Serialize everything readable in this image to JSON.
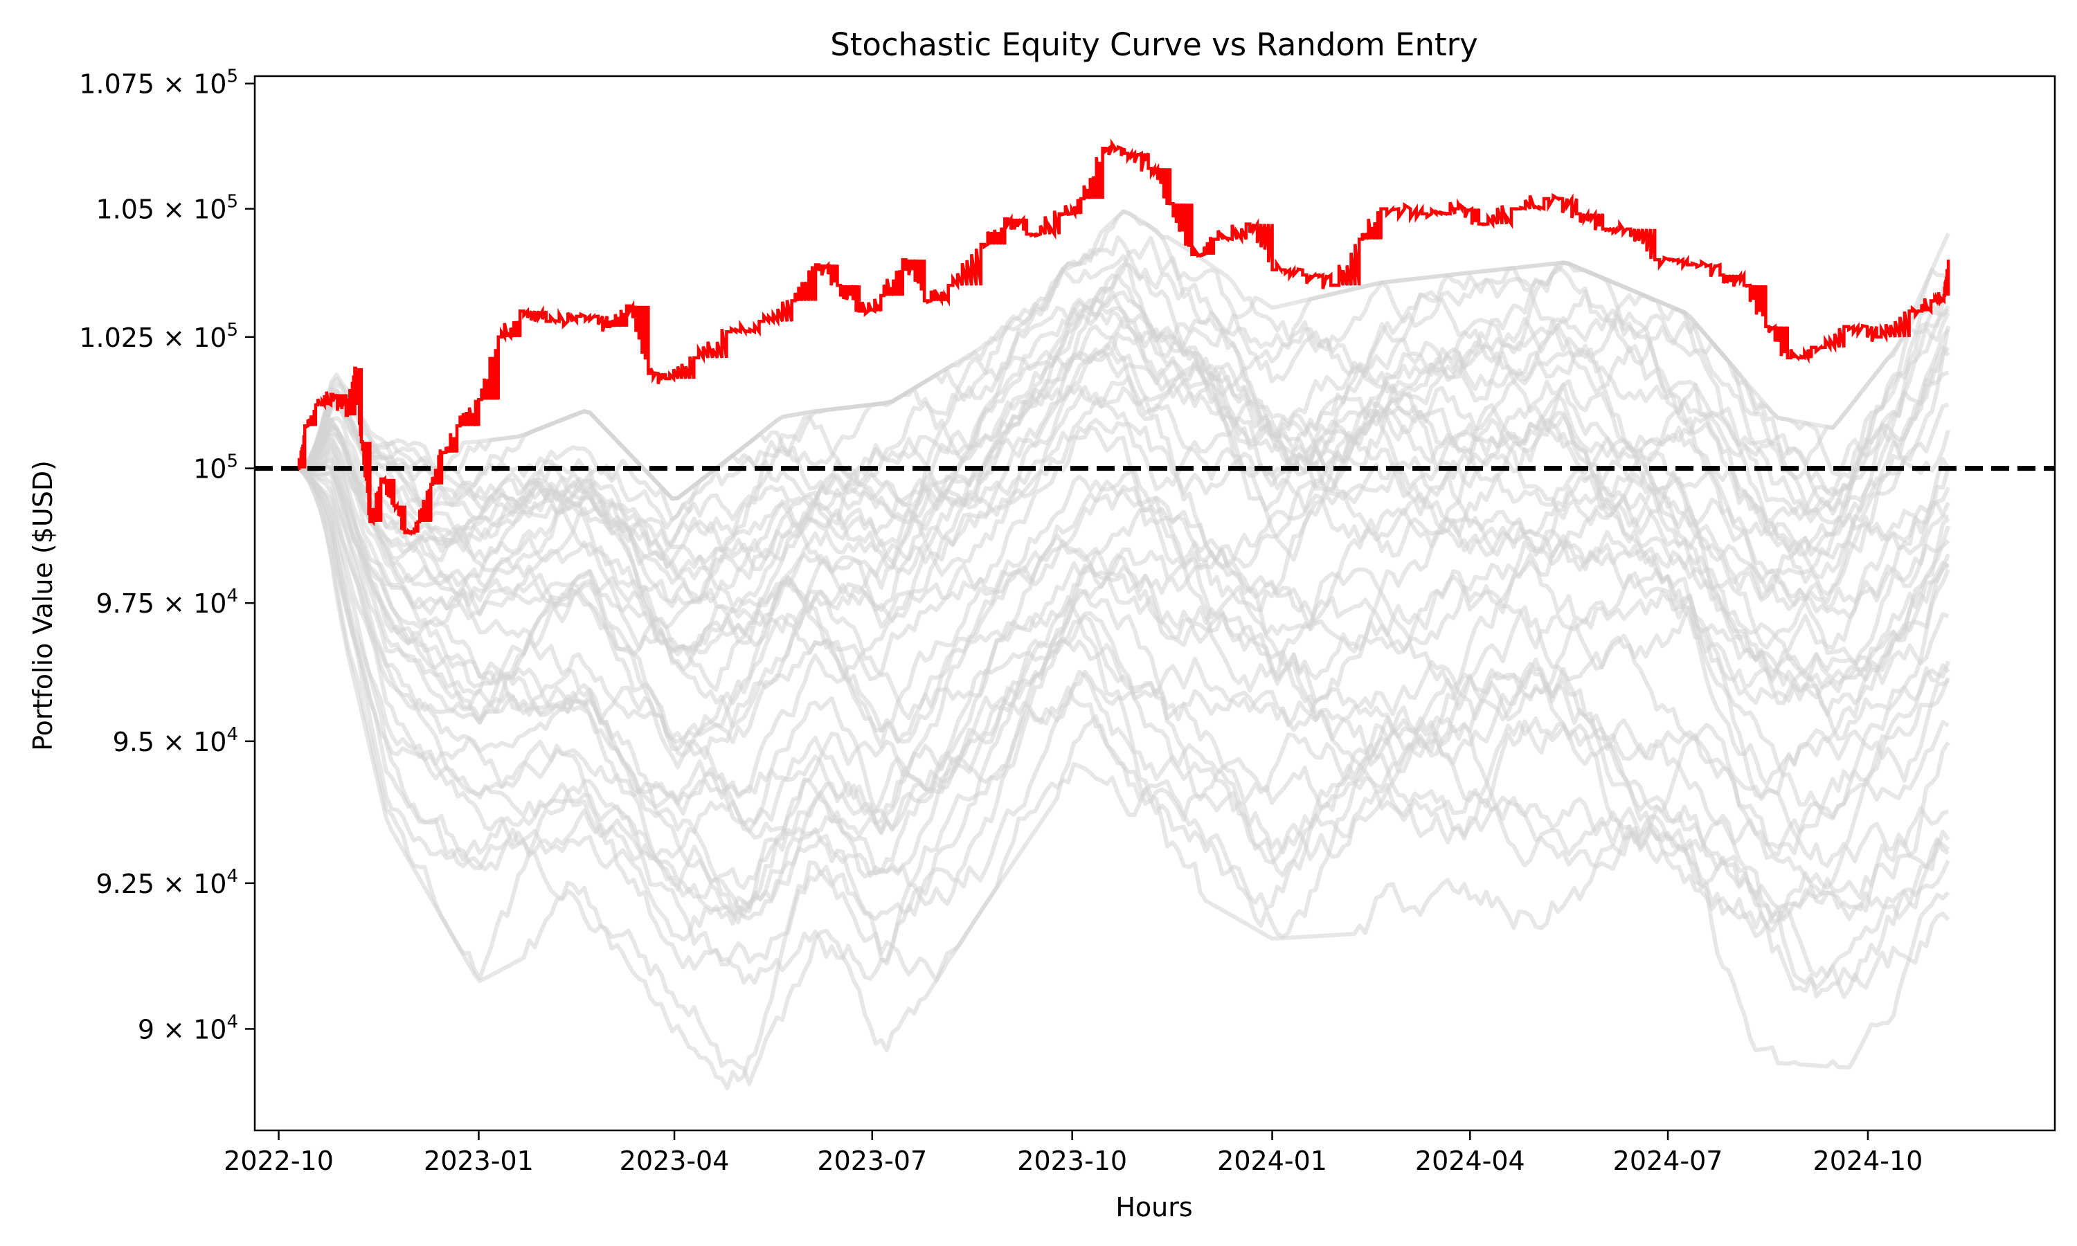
{
  "chart_data": {
    "type": "line",
    "title": "Stochastic Equity Curve vs Random Entry",
    "xlabel": "Hours",
    "ylabel": "Portfolio Value ($USD)",
    "yscale": "log",
    "ylim": [
      88300,
      107650
    ],
    "xlim": [
      "2022-09-20",
      "2024-12-26"
    ],
    "grid": false,
    "x_ticks": [
      "2022-10",
      "2023-01",
      "2023-04",
      "2023-07",
      "2023-10",
      "2024-01",
      "2024-04",
      "2024-07",
      "2024-10"
    ],
    "y_ticks": [
      {
        "value": 90000,
        "label_prefix": "9 × 10",
        "exponent": "4"
      },
      {
        "value": 92500,
        "label_prefix": "9.25 × 10",
        "exponent": "4"
      },
      {
        "value": 95000,
        "label_prefix": "9.5 × 10",
        "exponent": "4"
      },
      {
        "value": 97500,
        "label_prefix": "9.75 × 10",
        "exponent": "4"
      },
      {
        "value": 100000,
        "label_prefix": "10",
        "exponent": "5"
      },
      {
        "value": 102500,
        "label_prefix": "1.025 × 10",
        "exponent": "5"
      },
      {
        "value": 105000,
        "label_prefix": "1.05 × 10",
        "exponent": "5"
      },
      {
        "value": 107500,
        "label_prefix": "1.075 × 10",
        "exponent": "5"
      }
    ],
    "baseline": {
      "value": 100000,
      "style": "dashed",
      "color": "#000000"
    },
    "series": [
      {
        "role": "strategy",
        "color": "#ff0000",
        "points": [
          [
            "2022-10-10",
            100000
          ],
          [
            "2022-10-13",
            100800
          ],
          [
            "2022-10-18",
            101200
          ],
          [
            "2022-10-25",
            101400
          ],
          [
            "2022-11-01",
            101000
          ],
          [
            "2022-11-05",
            101900
          ],
          [
            "2022-11-08",
            100500
          ],
          [
            "2022-11-12",
            99000
          ],
          [
            "2022-11-17",
            99800
          ],
          [
            "2022-11-23",
            99300
          ],
          [
            "2022-11-28",
            98800
          ],
          [
            "2022-12-04",
            99000
          ],
          [
            "2022-12-10",
            99700
          ],
          [
            "2022-12-15",
            100300
          ],
          [
            "2022-12-22",
            100800
          ],
          [
            "2023-01-01",
            101300
          ],
          [
            "2023-01-10",
            102500
          ],
          [
            "2023-01-20",
            103000
          ],
          [
            "2023-02-01",
            102800
          ],
          [
            "2023-02-15",
            102900
          ],
          [
            "2023-03-01",
            102700
          ],
          [
            "2023-03-10",
            103100
          ],
          [
            "2023-03-20",
            101800
          ],
          [
            "2023-03-28",
            101700
          ],
          [
            "2023-04-10",
            102100
          ],
          [
            "2023-04-25",
            102600
          ],
          [
            "2023-05-10",
            102800
          ],
          [
            "2023-05-25",
            103200
          ],
          [
            "2023-06-05",
            103900
          ],
          [
            "2023-06-15",
            103500
          ],
          [
            "2023-06-25",
            103000
          ],
          [
            "2023-07-05",
            103300
          ],
          [
            "2023-07-15",
            104000
          ],
          [
            "2023-07-25",
            103200
          ],
          [
            "2023-08-05",
            103500
          ],
          [
            "2023-08-20",
            104300
          ],
          [
            "2023-08-31",
            104800
          ],
          [
            "2023-09-10",
            104500
          ],
          [
            "2023-09-25",
            104900
          ],
          [
            "2023-10-05",
            105200
          ],
          [
            "2023-10-15",
            106200
          ],
          [
            "2023-10-25",
            106100
          ],
          [
            "2023-11-05",
            105800
          ],
          [
            "2023-11-15",
            105100
          ],
          [
            "2023-11-25",
            104100
          ],
          [
            "2023-12-05",
            104400
          ],
          [
            "2023-12-20",
            104700
          ],
          [
            "2024-01-01",
            103800
          ],
          [
            "2024-01-15",
            103700
          ],
          [
            "2024-01-28",
            103500
          ],
          [
            "2024-02-10",
            104400
          ],
          [
            "2024-02-20",
            105000
          ],
          [
            "2024-03-10",
            104900
          ],
          [
            "2024-03-25",
            105000
          ],
          [
            "2024-04-05",
            104700
          ],
          [
            "2024-04-20",
            105000
          ],
          [
            "2024-05-05",
            105200
          ],
          [
            "2024-05-20",
            104900
          ],
          [
            "2024-06-01",
            104600
          ],
          [
            "2024-06-12",
            104600
          ],
          [
            "2024-06-25",
            104000
          ],
          [
            "2024-07-10",
            103900
          ],
          [
            "2024-07-25",
            103700
          ],
          [
            "2024-08-05",
            103500
          ],
          [
            "2024-08-15",
            102700
          ],
          [
            "2024-08-25",
            102100
          ],
          [
            "2024-09-05",
            102300
          ],
          [
            "2024-09-20",
            102700
          ],
          [
            "2024-10-05",
            102500
          ],
          [
            "2024-10-20",
            103000
          ],
          [
            "2024-10-30",
            103200
          ],
          [
            "2024-11-05",
            103300
          ],
          [
            "2024-11-07",
            104000
          ]
        ]
      }
    ],
    "random_entry_band": {
      "color": "#d3d3d3",
      "paths_count": 40,
      "upper": [
        [
          "2022-10-10",
          100000
        ],
        [
          "2022-10-25",
          102200
        ],
        [
          "2022-11-10",
          101000
        ],
        [
          "2022-12-10",
          100600
        ],
        [
          "2023-01-20",
          100800
        ],
        [
          "2023-02-20",
          101300
        ],
        [
          "2023-04-01",
          99600
        ],
        [
          "2023-05-20",
          101200
        ],
        [
          "2023-07-10",
          101500
        ],
        [
          "2023-08-20",
          102500
        ],
        [
          "2023-10-01",
          104200
        ],
        [
          "2023-10-25",
          105200
        ],
        [
          "2023-11-25",
          104400
        ],
        [
          "2024-01-01",
          103300
        ],
        [
          "2024-02-20",
          103800
        ],
        [
          "2024-04-01",
          104000
        ],
        [
          "2024-05-15",
          104200
        ],
        [
          "2024-07-10",
          103200
        ],
        [
          "2024-08-20",
          101200
        ],
        [
          "2024-09-15",
          101000
        ],
        [
          "2024-10-15",
          102600
        ],
        [
          "2024-11-07",
          104800
        ]
      ],
      "lower": [
        [
          "2022-10-10",
          99500
        ],
        [
          "2022-10-25",
          97800
        ],
        [
          "2022-11-20",
          93400
        ],
        [
          "2023-01-01",
          90600
        ],
        [
          "2023-02-15",
          91500
        ],
        [
          "2023-04-01",
          89200
        ],
        [
          "2023-05-05",
          88600
        ],
        [
          "2023-06-05",
          90600
        ],
        [
          "2023-07-05",
          89100
        ],
        [
          "2023-08-20",
          91800
        ],
        [
          "2023-10-05",
          94400
        ],
        [
          "2023-11-15",
          92300
        ],
        [
          "2024-01-01",
          91300
        ],
        [
          "2024-02-20",
          91400
        ],
        [
          "2024-04-01",
          91300
        ],
        [
          "2024-05-15",
          91500
        ],
        [
          "2024-07-10",
          90700
        ],
        [
          "2024-08-15",
          89200
        ],
        [
          "2024-09-25",
          89100
        ],
        [
          "2024-11-07",
          90600
        ]
      ]
    }
  }
}
